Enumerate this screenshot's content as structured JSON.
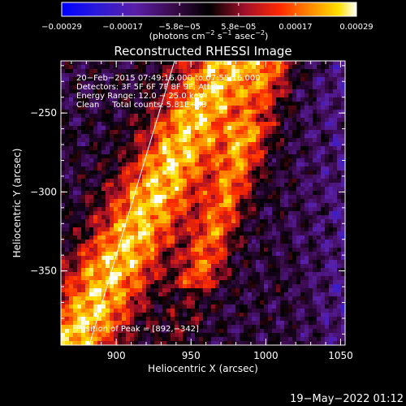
{
  "chart_data": {
    "type": "heatmap",
    "title": "Reconstructed RHESSI Image",
    "xlabel": "Heliocentric X (arcsec)",
    "ylabel": "Heliocentric Y (arcsec)",
    "xlim": [
      863,
      1053
    ],
    "ylim": [
      -397,
      -217
    ],
    "x_ticks": [
      900,
      950,
      1000,
      1050
    ],
    "y_ticks": [
      -250,
      -300,
      -350
    ],
    "y_tick_labels": [
      "−250",
      "−300",
      "−350"
    ],
    "colorbar": {
      "range": [
        -0.00029,
        0.00029
      ],
      "ticks": [
        -0.00029,
        -0.00017,
        -5.8e-05,
        5.8e-05,
        0.00017,
        0.00029
      ],
      "tick_labels": [
        "−0.00029",
        "−0.00017",
        "−5.8e−05",
        "5.8e−05",
        "0.00017",
        "0.00029"
      ],
      "units_prefix": "(photons cm",
      "units_exp1": "−2",
      "units_mid": " s",
      "units_exp2": "−1",
      "units_mid2": " asec",
      "units_exp3": "−2",
      "units_suffix": ")"
    },
    "annotations": [
      "20−Feb−2015 07:49:16.000 to 07:55:16.000",
      "Detectors: 3F 5F 6F 7F 8F 9F, Att 0",
      "Energy Range: 12.0 − 25.0 keV",
      "Clean     Total counts: 5.81E+03"
    ],
    "peak_label": "Position of Peak = [892,−342]",
    "peak_position": [
      892,
      -342
    ],
    "limb_line": [
      [
        882,
        -397
      ],
      [
        939,
        -217
      ]
    ],
    "grid": false
  },
  "timestamp": "19−May−2022 01:12",
  "colors": {
    "background": "#000000",
    "foreground": "#ffffff",
    "limb": "#ffffff"
  }
}
